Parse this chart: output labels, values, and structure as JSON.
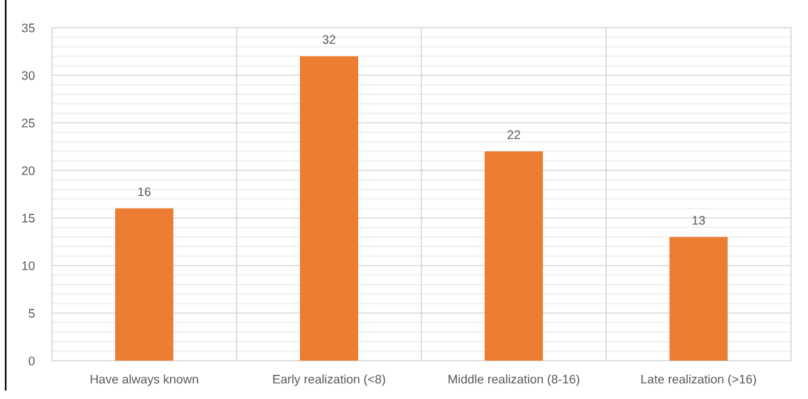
{
  "chart_data": {
    "type": "bar",
    "categories": [
      "Have always known",
      "Early realization (<8)",
      "Middle realization (8-16)",
      "Late realization (>16)"
    ],
    "values": [
      16,
      32,
      22,
      13
    ],
    "color": "#ed7d31",
    "data_labels": true,
    "grid": true,
    "ylim": [
      0,
      35
    ],
    "yticks": [
      0,
      {
        "value": 1,
        "label": null
      },
      {
        "value": 2,
        "label": null
      },
      {
        "value": 3,
        "label": null
      },
      {
        "value": 4,
        "label": null
      },
      5,
      {
        "value": 6,
        "label": null
      },
      {
        "value": 7,
        "label": null
      },
      {
        "value": 8,
        "label": null
      },
      {
        "value": 9,
        "label": null
      },
      10,
      {
        "value": 11,
        "label": null
      },
      {
        "value": 12,
        "label": null
      },
      {
        "value": 13,
        "label": null
      },
      {
        "value": 14,
        "label": null
      },
      15,
      {
        "value": 16,
        "label": null
      },
      {
        "value": 17,
        "label": null
      },
      {
        "value": 18,
        "label": null
      },
      {
        "value": 19,
        "label": null
      },
      20,
      {
        "value": 21,
        "label": null
      },
      {
        "value": 22,
        "label": null
      },
      {
        "value": 23,
        "label": null
      },
      {
        "value": 24,
        "label": null
      },
      25,
      {
        "value": 26,
        "label": null
      },
      {
        "value": 27,
        "label": null
      },
      {
        "value": 28,
        "label": null
      },
      {
        "value": 29,
        "label": null
      },
      30,
      {
        "value": 31,
        "label": null
      },
      {
        "value": 32,
        "label": null
      },
      {
        "value": 33,
        "label": null
      },
      {
        "value": 34,
        "label": null
      },
      35
    ]
  }
}
